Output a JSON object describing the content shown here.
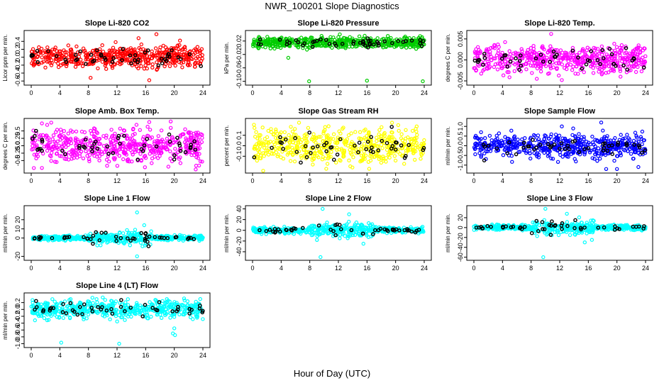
{
  "figure": {
    "title": "NWR_100201  Slope Diagnostics",
    "xlabel": "Hour of Day (UTC)"
  },
  "chart_data": [
    {
      "type": "scatter",
      "title": "Slope Li-820 CO2",
      "ylabel": "Licor ppm per min.",
      "color": "#ff0000",
      "xlim": [
        0,
        24
      ],
      "xticks": [
        0,
        4,
        8,
        12,
        16,
        20,
        24
      ],
      "ylim": [
        -0.65,
        0.62
      ],
      "yticks": [
        -0.6,
        -0.4,
        -0.2,
        0.0,
        0.2,
        0.4
      ],
      "ytick_labels": [
        "-0.6",
        "-0.4",
        "-0.2",
        "0.0",
        "0.2",
        "0.4"
      ],
      "spread": 0.13,
      "outliers": [
        [
          8.3,
          -0.52
        ],
        [
          11.8,
          0.38
        ],
        [
          15.0,
          0.48
        ],
        [
          16.5,
          -0.58
        ],
        [
          17.5,
          0.58
        ],
        [
          20.8,
          0.42
        ]
      ]
    },
    {
      "type": "scatter",
      "title": "Slope Li-820 Pressure",
      "ylabel": "kPa per min.",
      "color": "#00cc00",
      "xlim": [
        0,
        24
      ],
      "xticks": [
        0,
        4,
        8,
        12,
        16,
        20,
        24
      ],
      "ylim": [
        -0.105,
        0.045
      ],
      "yticks": [
        -0.1,
        -0.06,
        -0.02,
        0.02
      ],
      "ytick_labels": [
        "-0.10",
        "-0.06",
        "-0.02",
        "0.02"
      ],
      "spread": 0.008,
      "center": 0.015,
      "outliers": [
        [
          5.0,
          -0.03
        ],
        [
          7.9,
          -0.1
        ],
        [
          12.2,
          0.04
        ],
        [
          16.0,
          -0.098
        ],
        [
          23.8,
          -0.1
        ]
      ]
    },
    {
      "type": "scatter",
      "title": "Slope Li-820 Temp.",
      "ylabel": "degrees C per min.",
      "color": "#ff00ff",
      "xlim": [
        0,
        24
      ],
      "xticks": [
        0,
        4,
        8,
        12,
        16,
        20,
        24
      ],
      "ylim": [
        -0.0055,
        0.0065
      ],
      "yticks": [
        -0.005,
        0.0,
        0.005
      ],
      "ytick_labels": [
        "-0.005",
        "0.000",
        "0.005"
      ],
      "spread": 0.0016,
      "outliers": [
        [
          10.8,
          0.0062
        ],
        [
          8.8,
          -0.0045
        ],
        [
          12.3,
          -0.0048
        ],
        [
          20.5,
          -0.004
        ]
      ]
    },
    {
      "type": "scatter",
      "title": "Slope Amb. Box Temp.",
      "ylabel": "degrees C per min.",
      "color": "#ff00ff",
      "xlim": [
        0,
        24
      ],
      "xticks": [
        0,
        4,
        8,
        12,
        16,
        20,
        24
      ],
      "ylim": [
        -0.85,
        0.85
      ],
      "yticks": [
        -0.5,
        -0.25,
        0.0,
        0.25,
        0.5
      ],
      "ytick_labels": [
        "-0.5",
        "-0.25",
        "0.0",
        "0.25",
        "0.5"
      ],
      "spread": 0.28,
      "outliers": [
        [
          1.5,
          -0.75
        ],
        [
          2.8,
          0.78
        ],
        [
          16.5,
          0.8
        ],
        [
          19.5,
          0.82
        ],
        [
          23.0,
          -0.8
        ]
      ]
    },
    {
      "type": "scatter",
      "title": "Slope Gas Stream RH",
      "ylabel": "percent per min.",
      "color": "#ffff00",
      "xlim": [
        0,
        24
      ],
      "xticks": [
        0,
        4,
        8,
        12,
        16,
        20,
        24
      ],
      "ylim": [
        -0.24,
        0.24
      ],
      "yticks": [
        -0.1,
        0.0,
        0.1
      ],
      "ytick_labels": [
        "-0.1",
        "0.0",
        "0.1"
      ],
      "spread": 0.08,
      "outliers": [
        [
          0.2,
          0.2
        ],
        [
          6.5,
          0.22
        ],
        [
          10.3,
          -0.22
        ],
        [
          16.3,
          -0.22
        ],
        [
          19.5,
          0.22
        ]
      ]
    },
    {
      "type": "scatter",
      "title": "Slope Sample Flow",
      "ylabel": "ml/min per min.",
      "color": "#0000ff",
      "xlim": [
        0,
        24
      ],
      "xticks": [
        0,
        4,
        8,
        12,
        16,
        20,
        24
      ],
      "ylim": [
        -1.3,
        1.3
      ],
      "yticks": [
        -1.0,
        -0.5,
        0.0,
        0.5,
        1.0
      ],
      "ytick_labels": [
        "-1.0",
        "-0.5",
        "0.0",
        "0.5",
        "1.0"
      ],
      "spread": 0.3,
      "outliers": [
        [
          1.0,
          0.7
        ],
        [
          12.3,
          1.0
        ],
        [
          17.8,
          1.2
        ],
        [
          18.5,
          -1.2
        ],
        [
          20.0,
          -1.2
        ],
        [
          23.0,
          -1.1
        ]
      ]
    },
    {
      "type": "scatter",
      "title": "Slope Line 1 Flow",
      "ylabel": "ml/min per min.",
      "color": "#00ffff",
      "xlim": [
        0,
        24
      ],
      "xticks": [
        0,
        4,
        8,
        12,
        16,
        20,
        24
      ],
      "ylim": [
        -22,
        33
      ],
      "yticks": [
        -20,
        0,
        10,
        20
      ],
      "ytick_labels": [
        "-20",
        "0",
        "10",
        "20"
      ],
      "spread": 1.2,
      "outliers": [
        [
          14.8,
          28
        ],
        [
          15.8,
          14
        ],
        [
          14.8,
          -20
        ],
        [
          9.7,
          -8
        ],
        [
          13.0,
          -6
        ],
        [
          16.0,
          -5
        ]
      ]
    },
    {
      "type": "scatter",
      "title": "Slope Line 2 Flow",
      "ylabel": "ml/min per min.",
      "color": "#00ffff",
      "xlim": [
        0,
        24
      ],
      "xticks": [
        0,
        4,
        8,
        12,
        16,
        20,
        24
      ],
      "ylim": [
        -52,
        42
      ],
      "yticks": [
        -40,
        -20,
        0,
        20,
        40
      ],
      "ytick_labels": [
        "-40",
        "-20",
        "0",
        "20",
        "40"
      ],
      "spread": 2.5,
      "outliers": [
        [
          9.5,
          -50
        ],
        [
          9.8,
          40
        ],
        [
          9.0,
          -18
        ],
        [
          13.5,
          30
        ],
        [
          15.5,
          -25
        ]
      ]
    },
    {
      "type": "scatter",
      "title": "Slope Line 3 Flow",
      "ylabel": "ml/min per min.",
      "color": "#00ffff",
      "xlim": [
        0,
        24
      ],
      "xticks": [
        0,
        4,
        8,
        12,
        16,
        20,
        24
      ],
      "ylim": [
        -62,
        40
      ],
      "yticks": [
        -60,
        -40,
        -20,
        0,
        20
      ],
      "ytick_labels": [
        "-60",
        "-40",
        "-20",
        "0",
        "20"
      ],
      "spread": 2.5,
      "outliers": [
        [
          9.7,
          -60
        ],
        [
          10.0,
          38
        ],
        [
          13.0,
          28
        ],
        [
          15.5,
          -30
        ],
        [
          16.5,
          -25
        ]
      ]
    },
    {
      "type": "scatter",
      "title": "Slope Line 4 (LT) Flow",
      "ylabel": "ml/min per min.",
      "color": "#00ffff",
      "xlim": [
        0,
        24
      ],
      "xticks": [
        0,
        4,
        8,
        12,
        16,
        20,
        24
      ],
      "ylim": [
        -1.05,
        0.42
      ],
      "yticks": [
        -1.0,
        -0.8,
        -0.6,
        -0.4,
        -0.2,
        0.0,
        0.2
      ],
      "ytick_labels": [
        "-1.0",
        "-0.8",
        "-0.6",
        "-0.4",
        "-0.2",
        "0.0",
        "0.2"
      ],
      "spread": 0.13,
      "center": 0.0,
      "outliers": [
        [
          4.2,
          -0.97
        ],
        [
          12.3,
          -1.0
        ],
        [
          19.8,
          -0.7
        ],
        [
          20.1,
          -0.75
        ],
        [
          20.0,
          -0.55
        ],
        [
          10.0,
          0.35
        ]
      ]
    }
  ]
}
